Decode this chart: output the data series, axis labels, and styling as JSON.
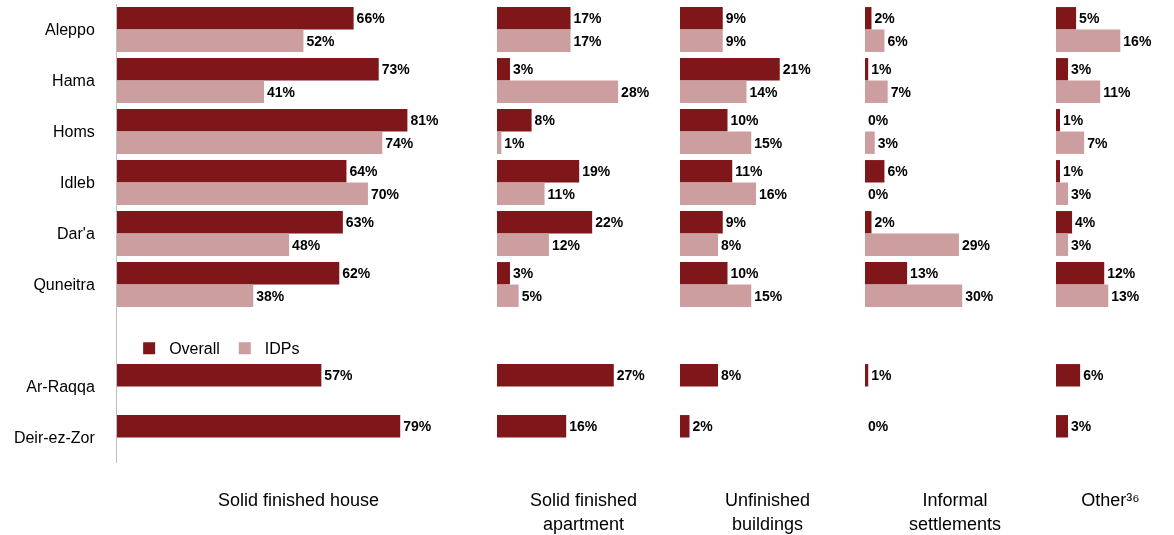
{
  "chart_data": [
    {
      "type": "bar",
      "orientation": "horizontal",
      "xlabel": "Solid finished house",
      "categories": [
        "Aleppo",
        "Hama",
        "Homs",
        "Idleb",
        "Dar'a",
        "Quneitra",
        null,
        "Ar-Raqqa",
        "Deir-ez-Zor"
      ],
      "tick_labels": "y",
      "legend": "bottom left",
      "series": [
        {
          "name": "Overall",
          "color": "#7f1619",
          "values": [
            66,
            73,
            81,
            64,
            63,
            62,
            null,
            57,
            79
          ],
          "value_labels": [
            "66%",
            "73%",
            "81%",
            "64%",
            "63%",
            "62%",
            null,
            "57%",
            "79%"
          ]
        },
        {
          "name": "IDPs",
          "color": "#cc9e9f",
          "values": [
            52,
            41,
            74,
            70,
            48,
            38,
            null,
            null,
            null
          ],
          "value_labels": [
            "52%",
            "41%",
            "74%",
            "70%",
            "48%",
            "38%",
            null,
            null,
            null
          ]
        }
      ]
    },
    {
      "type": "bar",
      "orientation": "horizontal",
      "xlabel": "Solid finished\napartment",
      "tick_labels": false,
      "series": [
        {
          "color": "#7f1619",
          "values": [
            17,
            3,
            8,
            19,
            22,
            3,
            null,
            27,
            16
          ],
          "value_labels": [
            "17%",
            "3%",
            "8%",
            "19%",
            "22%",
            "3%",
            null,
            "27%",
            "16%"
          ]
        },
        {
          "color": "#cc9e9f",
          "values": [
            17,
            28,
            1,
            11,
            12,
            5,
            null,
            null,
            null
          ],
          "value_labels": [
            "17%",
            "28%",
            "1%",
            "11%",
            "12%",
            "5%",
            null,
            null,
            null
          ]
        }
      ]
    },
    {
      "type": "bar",
      "orientation": "horizontal",
      "xlabel": "Unfinished\nbuildings",
      "tick_labels": false,
      "series": [
        {
          "color": "#7f1619",
          "values": [
            9,
            21,
            10,
            11,
            9,
            10,
            null,
            8,
            2
          ],
          "value_labels": [
            "9%",
            "21%",
            "10%",
            "11%",
            "9%",
            "10%",
            null,
            "8%",
            "2%"
          ]
        },
        {
          "color": "#cc9e9f",
          "values": [
            9,
            14,
            15,
            16,
            8,
            15,
            null,
            null,
            null
          ],
          "value_labels": [
            "9%",
            "14%",
            "15%",
            "16%",
            "8%",
            "15%",
            null,
            null,
            null
          ]
        }
      ]
    },
    {
      "type": "bar",
      "orientation": "horizontal",
      "xlabel": "Informal\nsettlements",
      "tick_labels": false,
      "series": [
        {
          "color": "#7f1619",
          "values": [
            2,
            1,
            0,
            6,
            2,
            13,
            null,
            1,
            0
          ],
          "value_labels": [
            "2%",
            "1%",
            "0%",
            "6%",
            "2%",
            "13%",
            null,
            "1%",
            "0%"
          ]
        },
        {
          "color": "#cc9e9f",
          "values": [
            6,
            7,
            3,
            0,
            29,
            30,
            null,
            null,
            null
          ],
          "value_labels": [
            "6%",
            "7%",
            "3%",
            "0%",
            "29%",
            "30%",
            null,
            null,
            null
          ]
        }
      ]
    },
    {
      "type": "bar",
      "orientation": "horizontal",
      "xlabel": "Other³⁶",
      "tick_labels": false,
      "series": [
        {
          "color": "#7f1619",
          "values": [
            5,
            3,
            1,
            1,
            4,
            12,
            null,
            6,
            3
          ],
          "value_labels": [
            "5%",
            "3%",
            "1%",
            "1%",
            "4%",
            "12%",
            null,
            "6%",
            "3%"
          ]
        },
        {
          "color": "#cc9e9f",
          "values": [
            16,
            11,
            7,
            3,
            3,
            13,
            null,
            null,
            null
          ],
          "value_labels": [
            "16%",
            "11%",
            "7%",
            "3%",
            "3%",
            "13%",
            null,
            null,
            null
          ]
        }
      ]
    }
  ]
}
